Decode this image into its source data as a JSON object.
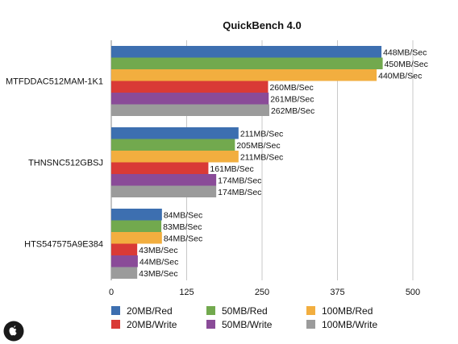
{
  "chart_data": {
    "type": "bar",
    "orientation": "horizontal",
    "title": "QuickBench 4.0",
    "xlabel": "",
    "ylabel": "",
    "xlim": [
      0,
      500
    ],
    "xticks": [
      "0",
      "125",
      "250",
      "375",
      "500"
    ],
    "grid": "vertical",
    "legend_position": "bottom",
    "categories": [
      "MTFDDAC512MAM-1K1",
      "THNSNC512GBSJ",
      "HTS547575A9E384"
    ],
    "series": [
      {
        "name": "20MB/Red",
        "color": "#3d6fb0",
        "values": [
          448,
          211,
          84
        ],
        "labels": [
          "448MB/Sec",
          "211MB/Sec",
          "84MB/Sec"
        ]
      },
      {
        "name": "50MB/Red",
        "color": "#72a94e",
        "values": [
          450,
          205,
          83
        ],
        "labels": [
          "450MB/Sec",
          "205MB/Sec",
          "83MB/Sec"
        ]
      },
      {
        "name": "100MB/Red",
        "color": "#f2ae3f",
        "values": [
          440,
          211,
          84
        ],
        "labels": [
          "440MB/Sec",
          "211MB/Sec",
          "84MB/Sec"
        ]
      },
      {
        "name": "20MB/Write",
        "color": "#d93a36",
        "values": [
          260,
          161,
          43
        ],
        "labels": [
          "260MB/Sec",
          "161MB/Sec",
          "43MB/Sec"
        ]
      },
      {
        "name": "50MB/Write",
        "color": "#8a4b98",
        "values": [
          261,
          174,
          44
        ],
        "labels": [
          "261MB/Sec",
          "174MB/Sec",
          "44MB/Sec"
        ]
      },
      {
        "name": "100MB/Write",
        "color": "#9b9b9b",
        "values": [
          262,
          174,
          43
        ],
        "labels": [
          "262MB/Sec",
          "174MB/Sec",
          "43MB/Sec"
        ]
      }
    ]
  },
  "logo": {
    "icon": "apple-logo-icon"
  }
}
